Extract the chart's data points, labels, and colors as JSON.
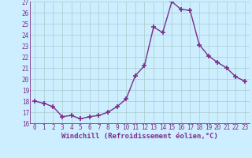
{
  "xlabel": "Windchill (Refroidissement éolien,°C)",
  "hours": [
    0,
    1,
    2,
    3,
    4,
    5,
    6,
    7,
    8,
    9,
    10,
    11,
    12,
    13,
    14,
    15,
    16,
    17,
    18,
    19,
    20,
    21,
    22,
    23
  ],
  "values": [
    18.0,
    17.8,
    17.5,
    16.6,
    16.7,
    16.4,
    16.6,
    16.7,
    17.0,
    17.5,
    18.2,
    20.3,
    21.2,
    24.7,
    24.2,
    27.0,
    26.3,
    26.2,
    23.1,
    22.1,
    21.5,
    21.0,
    20.2,
    19.8
  ],
  "line_color": "#7B2D8B",
  "marker": "+",
  "marker_size": 4,
  "bg_color": "#cceeff",
  "grid_color": "#aacccc",
  "ylim": [
    16,
    27
  ],
  "yticks": [
    16,
    17,
    18,
    19,
    20,
    21,
    22,
    23,
    24,
    25,
    26,
    27
  ],
  "xticks": [
    0,
    1,
    2,
    3,
    4,
    5,
    6,
    7,
    8,
    9,
    10,
    11,
    12,
    13,
    14,
    15,
    16,
    17,
    18,
    19,
    20,
    21,
    22,
    23
  ],
  "tick_fontsize": 5.5,
  "xlabel_fontsize": 6.5,
  "label_color": "#7B2D8B",
  "linewidth": 1.0,
  "marker_linewidth": 1.2
}
